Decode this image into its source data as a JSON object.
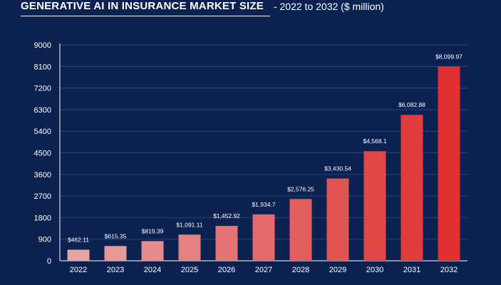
{
  "header": {
    "title": "GENERATIVE AI IN INSURANCE MARKET SIZE",
    "subtitle": "-  2022 to 2032 ($ million)"
  },
  "colors": {
    "background": "#0b2150",
    "bar_light": "#e8a3a3",
    "bar_dark": "#e03030",
    "axis": "#ffffff",
    "grid": "#2b4478"
  },
  "chart_data": {
    "type": "bar",
    "title": "GENERATIVE AI IN INSURANCE MARKET SIZE",
    "subtitle": "2022 to 2032 ($ million)",
    "xlabel": "",
    "ylabel": "",
    "categories": [
      "2022",
      "2023",
      "2024",
      "2025",
      "2026",
      "2027",
      "2028",
      "2029",
      "2030",
      "2031",
      "2032"
    ],
    "values": [
      462.11,
      615.35,
      819.39,
      1091.11,
      1452.92,
      1934.7,
      2576.25,
      3430.54,
      4568.1,
      6082.88,
      8099.97
    ],
    "data_labels": [
      "$462.11",
      "$615.35",
      "$819.39",
      "$1,091.11",
      "$1,452.92",
      "$1,934.7",
      "$2,576.25",
      "$3,430.54",
      "$4,568.1",
      "$6,082.88",
      "$8,099.97"
    ],
    "yticks": [
      0,
      900,
      1800,
      2700,
      3600,
      4500,
      5400,
      6300,
      7200,
      8100,
      9000
    ],
    "ylim": [
      0,
      9000
    ],
    "grid": true,
    "legend": "none"
  }
}
